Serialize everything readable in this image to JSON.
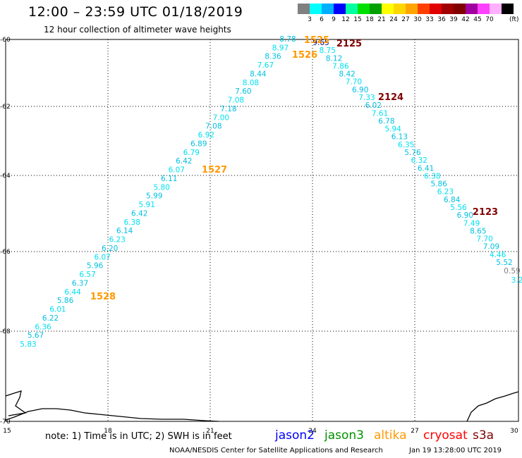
{
  "header": {
    "title": "12:00 – 23:59 UTC 01/18/2019",
    "subtitle": "12 hour collection of altimeter wave heights"
  },
  "legend": {
    "colors": [
      "#808080",
      "#00ffff",
      "#00b0ff",
      "#0000ff",
      "#00ffa0",
      "#00e000",
      "#00a000",
      "#ffff00",
      "#ffd700",
      "#ffa500",
      "#ff4000",
      "#e00000",
      "#a00000",
      "#800000",
      "#a000a0",
      "#ff40ff",
      "#ffb0ff",
      "#000000"
    ],
    "ticks": [
      "3",
      "6",
      "9",
      "12",
      "15",
      "18",
      "21",
      "24",
      "27",
      "30",
      "33",
      "36",
      "39",
      "42",
      "45",
      "70"
    ],
    "unit": "(ft)"
  },
  "axes": {
    "x_ticks": [
      "15",
      "18",
      "21",
      "24",
      "27",
      "30"
    ],
    "y_ticks": [
      "-60",
      "-62",
      "-64",
      "-66",
      "-68",
      "-70"
    ]
  },
  "colors": {
    "swh_low": "#00e0f0",
    "swh_mid": "#00c0e0",
    "jason2": "#0000ff",
    "jason3": "#009000",
    "altika": "#ff9900",
    "cryosat": "#ff0000",
    "s3a": "#800000",
    "faded": "#808080"
  },
  "tracks": {
    "left": [
      "5.83",
      "5.67",
      "6.36",
      "6.22",
      "6.01",
      "5.86",
      "6.44",
      "6.37",
      "6.57",
      "5.96",
      "6.07",
      "6.20",
      "6.23",
      "6.14",
      "6.38",
      "6.42",
      "5.91",
      "5.99",
      "5.80",
      "6.11",
      "6.07",
      "6.42",
      "6.79",
      "6.89",
      "6.92",
      "7.08",
      "7.00",
      "7.18",
      "7.08",
      "7.60",
      "8.08",
      "8.44",
      "7.67",
      "8.36",
      "8.97",
      "8.78"
    ],
    "right": [
      "9.65",
      "8.75",
      "8.12",
      "7.86",
      "8.42",
      "7.70",
      "6.90",
      "7.33",
      "6.02",
      "7.61",
      "6.78",
      "5.94",
      "6.13",
      "6.35",
      "5.76",
      "6.32",
      "6.41",
      "6.38",
      "5.86",
      "6.23",
      "6.84",
      "5.56",
      "6.90",
      "7.49",
      "8.65",
      "7.70",
      "7.09",
      "4.46",
      "5.52"
    ],
    "right_tail": [
      "0.59",
      "3.2"
    ]
  },
  "labels": {
    "altika_times": [
      "1528",
      "1527",
      "1526",
      "1525"
    ],
    "s3a_times": [
      "2125",
      "2124",
      "2123"
    ]
  },
  "footer": {
    "note": "note: 1) Time is in UTC; 2) SWH is in feet",
    "missions": [
      "jason2",
      "jason3",
      "altika",
      "cryosat",
      "s3a"
    ],
    "credit": "NOAA/NESDIS Center for Satellite Applications and Research",
    "timestamp": "Jan 19 13:28:00 UTC 2019"
  }
}
